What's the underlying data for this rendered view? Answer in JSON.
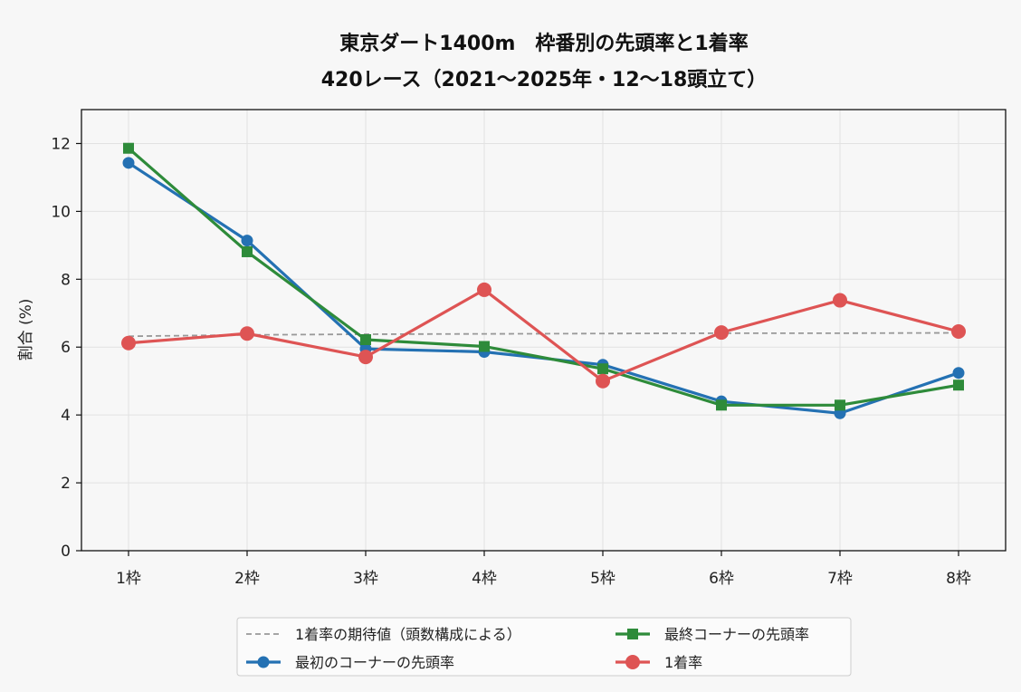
{
  "chart_data": {
    "type": "line",
    "title": "東京ダート1400m　枠番別の先頭率と1着率",
    "subtitle": "420レース（2021〜2025年・12〜18頭立て）",
    "xlabel": "",
    "ylabel": "割合 (%)",
    "categories": [
      "1枠",
      "2枠",
      "3枠",
      "4枠",
      "5枠",
      "6枠",
      "7枠",
      "8枠"
    ],
    "ylim": [
      0,
      13
    ],
    "yticks": [
      0,
      2,
      4,
      6,
      8,
      10,
      12
    ],
    "grid": true,
    "legend_position": "bottom-center",
    "series": [
      {
        "name": "1着率の期待値（頭数構成による）",
        "style": "dashed",
        "marker": "none",
        "color": "#999999",
        "values": [
          6.32,
          6.36,
          6.38,
          6.39,
          6.4,
          6.41,
          6.41,
          6.42
        ]
      },
      {
        "name": "最初のコーナーの先頭率",
        "style": "solid",
        "marker": "circle",
        "color": "#2471b3",
        "values": [
          11.43,
          9.14,
          5.95,
          5.86,
          5.48,
          4.4,
          4.05,
          5.24
        ]
      },
      {
        "name": "最終コーナーの先頭率",
        "style": "solid",
        "marker": "square",
        "color": "#2e8b3a",
        "values": [
          11.86,
          8.81,
          6.22,
          6.02,
          5.36,
          4.29,
          4.29,
          4.88
        ]
      },
      {
        "name": "1着率",
        "style": "solid",
        "marker": "circle-large",
        "color": "#de5454",
        "values": [
          6.12,
          6.4,
          5.71,
          7.69,
          5.0,
          6.43,
          7.38,
          6.46
        ]
      }
    ]
  }
}
